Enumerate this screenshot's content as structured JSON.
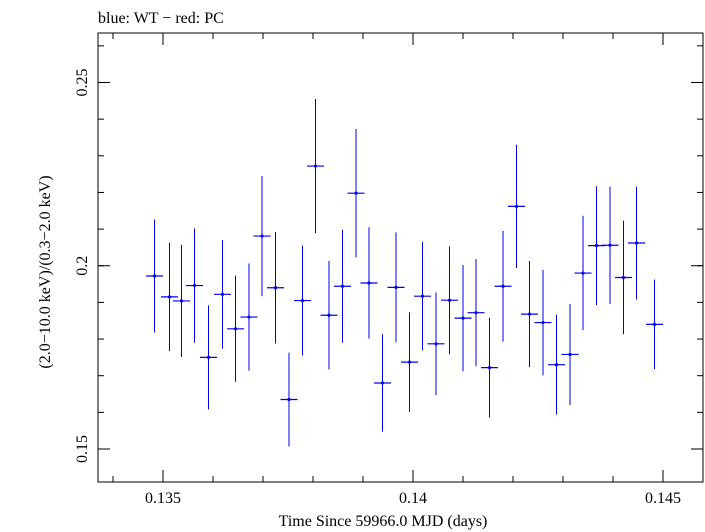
{
  "chart_data": {
    "type": "scatter",
    "title": "blue: WT − red: PC",
    "xlabel": "Time Since 59966.0 MJD (days)",
    "ylabel": "(2.0−10.0 keV)/(0.3−2.0 keV)",
    "xlim": [
      0.1337,
      0.1458
    ],
    "ylim": [
      0.141,
      0.2635
    ],
    "x_ticks": [
      {
        "value": 0.135,
        "label": "0.135"
      },
      {
        "value": 0.14,
        "label": "0.14"
      },
      {
        "value": 0.145,
        "label": "0.145"
      }
    ],
    "y_ticks": [
      {
        "value": 0.15,
        "label": "0.15"
      },
      {
        "value": 0.2,
        "label": "0.2"
      },
      {
        "value": 0.25,
        "label": "0.25"
      }
    ],
    "grid": false,
    "series": [
      {
        "name": "WT",
        "color": "#0000ee",
        "xerr": 0.00017,
        "points": [
          {
            "x": 0.13483,
            "y": 0.1972,
            "yerr": 0.0154
          },
          {
            "x": 0.13513,
            "y": 0.1915,
            "yerr": 0.0148
          },
          {
            "x": 0.13537,
            "y": 0.1904,
            "yerr": 0.0153
          },
          {
            "x": 0.13563,
            "y": 0.1946,
            "yerr": 0.0156
          },
          {
            "x": 0.13591,
            "y": 0.175,
            "yerr": 0.0142
          },
          {
            "x": 0.13619,
            "y": 0.1922,
            "yerr": 0.0148
          },
          {
            "x": 0.13645,
            "y": 0.1828,
            "yerr": 0.0145
          },
          {
            "x": 0.13672,
            "y": 0.186,
            "yerr": 0.0146
          },
          {
            "x": 0.13698,
            "y": 0.2081,
            "yerr": 0.0164
          },
          {
            "x": 0.13725,
            "y": 0.194,
            "yerr": 0.0152
          },
          {
            "x": 0.13752,
            "y": 0.1635,
            "yerr": 0.0128
          },
          {
            "x": 0.13779,
            "y": 0.1905,
            "yerr": 0.015
          },
          {
            "x": 0.13805,
            "y": 0.2272,
            "yerr": 0.0183
          },
          {
            "x": 0.13832,
            "y": 0.1865,
            "yerr": 0.0148
          },
          {
            "x": 0.13859,
            "y": 0.1944,
            "yerr": 0.0154
          },
          {
            "x": 0.13886,
            "y": 0.2198,
            "yerr": 0.0175
          },
          {
            "x": 0.13912,
            "y": 0.1953,
            "yerr": 0.0152
          },
          {
            "x": 0.13939,
            "y": 0.168,
            "yerr": 0.0133
          },
          {
            "x": 0.13966,
            "y": 0.1941,
            "yerr": 0.015
          },
          {
            "x": 0.13993,
            "y": 0.1737,
            "yerr": 0.0136
          },
          {
            "x": 0.14019,
            "y": 0.1917,
            "yerr": 0.0148
          },
          {
            "x": 0.14046,
            "y": 0.1787,
            "yerr": 0.014
          },
          {
            "x": 0.14073,
            "y": 0.1906,
            "yerr": 0.0147
          },
          {
            "x": 0.141,
            "y": 0.1857,
            "yerr": 0.0145
          },
          {
            "x": 0.14126,
            "y": 0.1872,
            "yerr": 0.0146
          },
          {
            "x": 0.14153,
            "y": 0.1722,
            "yerr": 0.0136
          },
          {
            "x": 0.1418,
            "y": 0.1944,
            "yerr": 0.0151
          },
          {
            "x": 0.14207,
            "y": 0.2162,
            "yerr": 0.0168
          },
          {
            "x": 0.14233,
            "y": 0.1868,
            "yerr": 0.0145
          },
          {
            "x": 0.1426,
            "y": 0.1845,
            "yerr": 0.0144
          },
          {
            "x": 0.14287,
            "y": 0.173,
            "yerr": 0.0136
          },
          {
            "x": 0.14314,
            "y": 0.1758,
            "yerr": 0.0138
          },
          {
            "x": 0.1434,
            "y": 0.198,
            "yerr": 0.0156
          },
          {
            "x": 0.14367,
            "y": 0.2055,
            "yerr": 0.0162
          },
          {
            "x": 0.14394,
            "y": 0.2056,
            "yerr": 0.016
          },
          {
            "x": 0.14421,
            "y": 0.1968,
            "yerr": 0.0155
          },
          {
            "x": 0.14447,
            "y": 0.2062,
            "yerr": 0.0154
          },
          {
            "x": 0.14483,
            "y": 0.184,
            "yerr": 0.0122
          }
        ]
      }
    ]
  }
}
